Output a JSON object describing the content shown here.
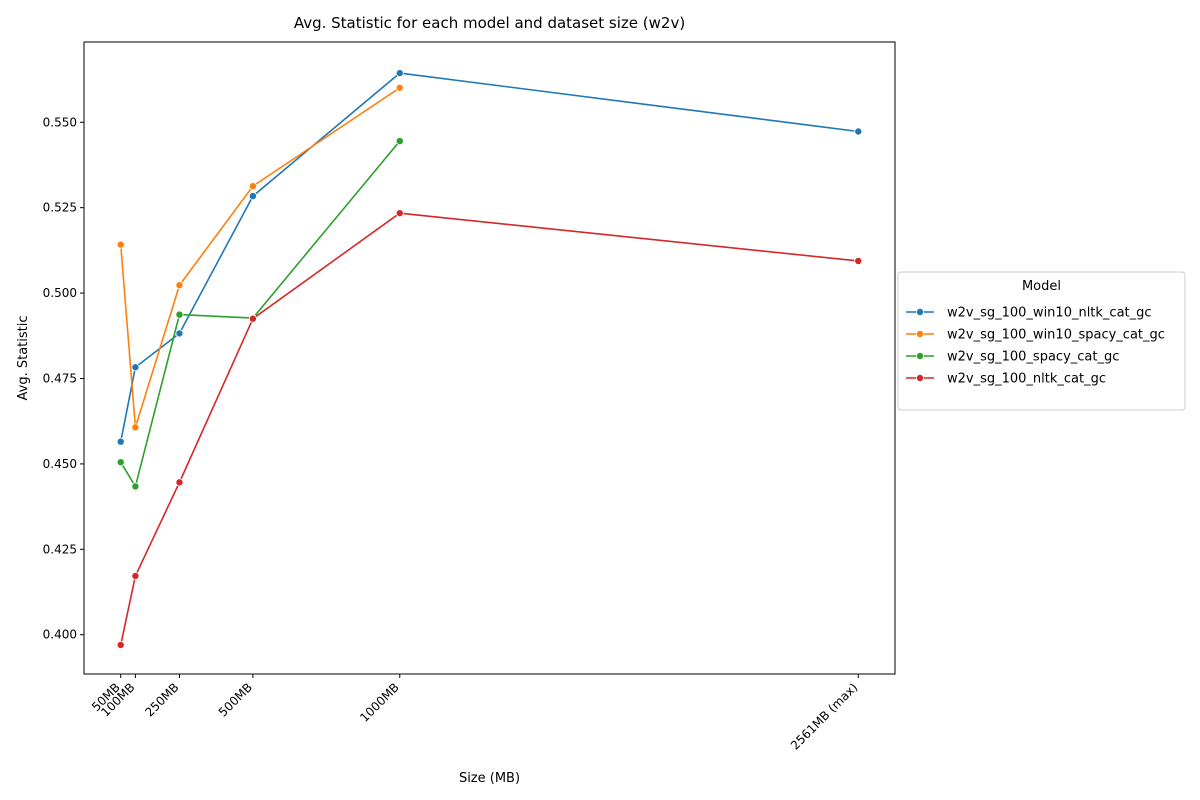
{
  "chart_data": {
    "type": "line",
    "title": "Avg. Statistic for each model and dataset size (w2v)",
    "xlabel": "Size (MB)",
    "ylabel": "Avg. Statistic",
    "x": [
      50,
      100,
      250,
      500,
      1000,
      2561
    ],
    "x_tick_labels": [
      "50MB",
      "100MB",
      "250MB",
      "500MB",
      "1000MB",
      "2561MB (max)"
    ],
    "xlim": [
      -75,
      2686
    ],
    "ylim": [
      0.3885,
      0.5735
    ],
    "y_ticks": [
      0.4,
      0.425,
      0.45,
      0.475,
      0.5,
      0.525,
      0.55
    ],
    "y_tick_labels": [
      "0.400",
      "0.425",
      "0.450",
      "0.475",
      "0.500",
      "0.525",
      "0.550"
    ],
    "grid": false,
    "legend": {
      "title": "Model",
      "placement": "outside-right"
    },
    "series": [
      {
        "name": "w2v_sg_100_win10_nltk_cat_gc",
        "color": "#1f77b4",
        "x": [
          50,
          100,
          250,
          500,
          1000,
          2561
        ],
        "values": [
          0.4565,
          0.4783,
          0.4882,
          0.5284,
          0.5644,
          0.5473
        ]
      },
      {
        "name": "w2v_sg_100_win10_spacy_cat_gc",
        "color": "#ff7f0e",
        "x": [
          50,
          100,
          250,
          500,
          1000
        ],
        "values": [
          0.5142,
          0.4607,
          0.5023,
          0.5313,
          0.5601
        ]
      },
      {
        "name": "w2v_sg_100_spacy_cat_gc",
        "color": "#2ca02c",
        "x": [
          50,
          100,
          250,
          500,
          1000
        ],
        "values": [
          0.4505,
          0.4434,
          0.4937,
          0.4927,
          0.5445
        ]
      },
      {
        "name": "w2v_sg_100_nltk_cat_gc",
        "color": "#d62728",
        "x": [
          50,
          100,
          250,
          500,
          1000,
          2561
        ],
        "values": [
          0.397,
          0.4172,
          0.4446,
          0.4925,
          0.5234,
          0.5094
        ]
      }
    ]
  }
}
